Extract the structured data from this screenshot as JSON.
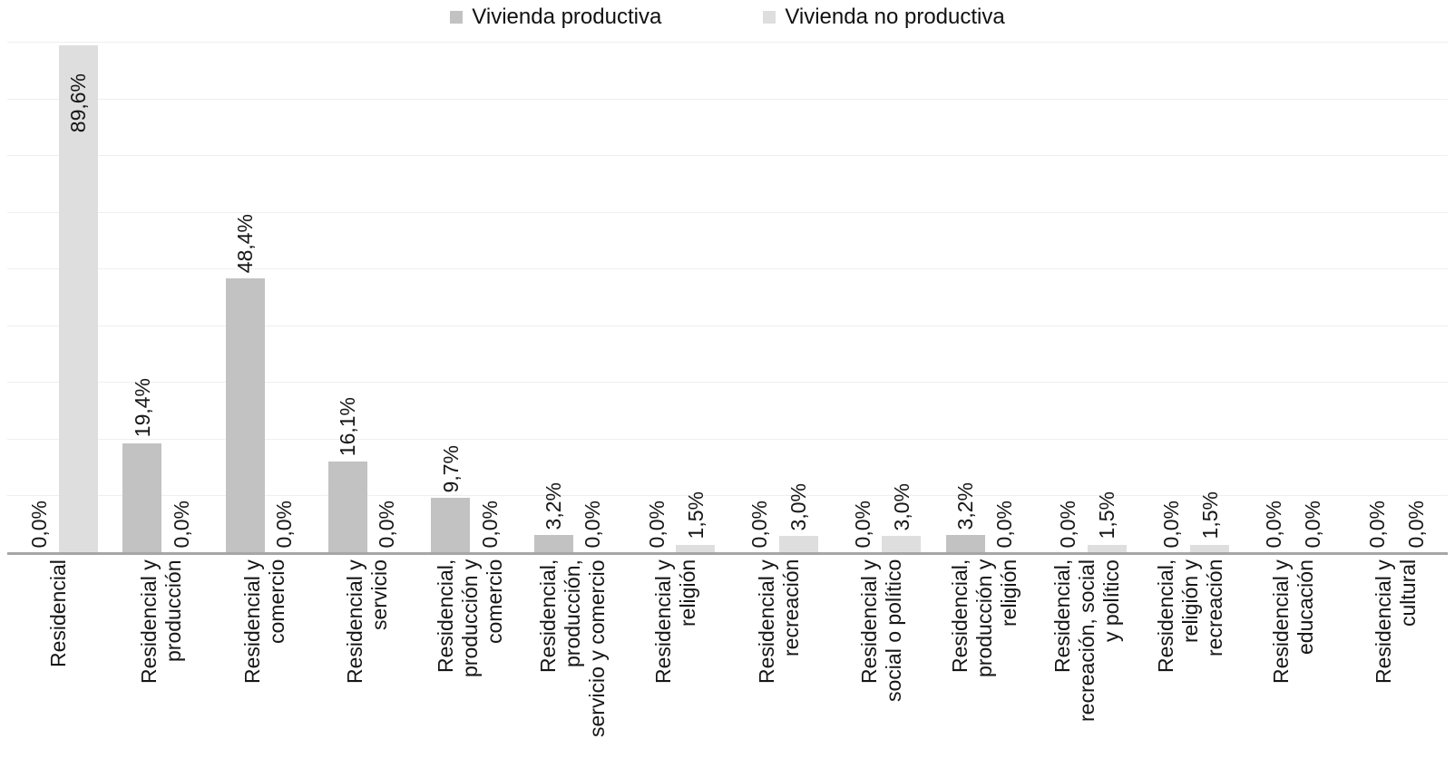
{
  "chart_data": {
    "type": "bar",
    "title": "",
    "xlabel": "",
    "ylabel": "",
    "legend_position": "top",
    "grid": true,
    "ylim_percent": [
      0,
      90
    ],
    "gridline_step_percent": 10,
    "value_suffix": "%",
    "categories": [
      "Residencial",
      "Residencial y\nproducción",
      "Residencial y\ncomercio",
      "Residencial y\nservicio",
      "Residencial,\nproducción y\ncomercio",
      "Residencial,\nproducción,\nservicio y comercio",
      "Residencial y\nreligión",
      "Residencial y\nrecreación",
      "Residencial y\nsocial o político",
      "Residencial,\nproducción y\nreligión",
      "Residencial,\nrecreación, social\ny político",
      "Residencial,\nreligión y\nrecreación",
      "Residencial y\neducación",
      "Residencial y\ncultural"
    ],
    "series": [
      {
        "name": "Vivienda productiva",
        "color": "#c2c2c2",
        "values": [
          0.0,
          19.4,
          48.4,
          16.1,
          9.7,
          3.2,
          0.0,
          0.0,
          0.0,
          3.2,
          0.0,
          0.0,
          0.0,
          0.0
        ],
        "labels": [
          "0,0%",
          "19,4%",
          "48,4%",
          "16,1%",
          "9,7%",
          "3,2%",
          "0,0%",
          "0,0%",
          "0,0%",
          "3,2%",
          "0,0%",
          "0,0%",
          "0,0%",
          "0,0%"
        ]
      },
      {
        "name": "Vivienda no productiva",
        "color": "#dedede",
        "values": [
          89.6,
          0.0,
          0.0,
          0.0,
          0.0,
          0.0,
          1.5,
          3.0,
          3.0,
          0.0,
          1.5,
          1.5,
          0.0,
          0.0
        ],
        "labels": [
          "89,6%",
          "0,0%",
          "0,0%",
          "0,0%",
          "0,0%",
          "0,0%",
          "1,5%",
          "3,0%",
          "3,0%",
          "0,0%",
          "1,5%",
          "1,5%",
          "0,0%",
          "0,0%"
        ]
      }
    ],
    "colors": {
      "axis": "#a6a6a6",
      "gridline": "#efefef",
      "text": "#1a1a1a"
    }
  }
}
